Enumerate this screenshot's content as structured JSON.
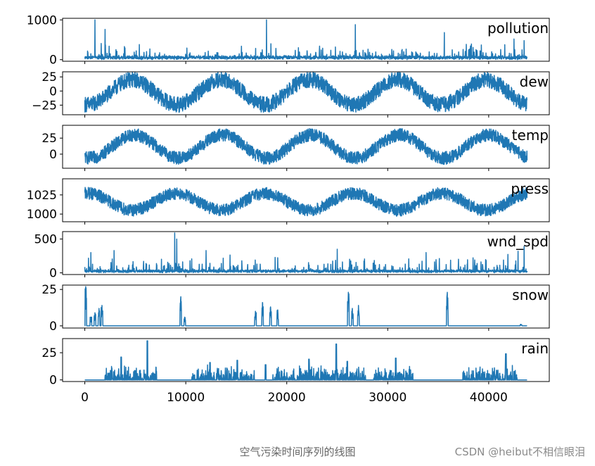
{
  "chart_data": {
    "type": "line",
    "color": "#1f77b4",
    "x_range": [
      0,
      43800
    ],
    "xlim": [
      -2200,
      46000
    ],
    "x_ticks": [
      0,
      10000,
      20000,
      30000,
      40000
    ],
    "x_tick_labels": [
      "0",
      "10000",
      "20000",
      "30000",
      "40000"
    ],
    "panels": [
      {
        "name": "pollution",
        "ylim": [
          -40,
          1040
        ],
        "ticks": [
          0,
          1000
        ],
        "tick_labels": [
          "0",
          "1000"
        ],
        "kind": "spiky",
        "base": 60,
        "spread": 180,
        "peaks": [
          [
            1000,
            1000
          ],
          [
            2000,
            760
          ],
          [
            18000,
            1000
          ],
          [
            26800,
            880
          ],
          [
            35600,
            680
          ],
          [
            42500,
            520
          ],
          [
            43500,
            480
          ]
        ]
      },
      {
        "name": "dew",
        "ylim": [
          -42,
          34
        ],
        "ticks": [
          -25,
          0,
          25
        ],
        "tick_labels": [
          "−25",
          "0",
          "25"
        ],
        "kind": "seasonal",
        "mean": -2,
        "amp": 22,
        "noise": 14,
        "phase_peak": 4700
      },
      {
        "name": "temp",
        "ylim": [
          -22,
          45
        ],
        "ticks": [
          0,
          25
        ],
        "tick_labels": [
          "0",
          "25"
        ],
        "kind": "seasonal",
        "mean": 12,
        "amp": 18,
        "noise": 10,
        "phase_peak": 4900
      },
      {
        "name": "press",
        "ylim": [
          990,
          1046
        ],
        "ticks": [
          1000,
          1025
        ],
        "tick_labels": [
          "1000",
          "1025"
        ],
        "kind": "seasonal",
        "mean": 1016,
        "amp": -11,
        "noise": 8,
        "phase_peak": 4700
      },
      {
        "name": "wnd_spd",
        "ylim": [
          -25,
          610
        ],
        "ticks": [
          0,
          500
        ],
        "tick_labels": [
          "0",
          "500"
        ],
        "kind": "spiky",
        "base": 20,
        "spread": 120,
        "peaks": [
          [
            600,
            300
          ],
          [
            2900,
            330
          ],
          [
            8900,
            590
          ],
          [
            9100,
            500
          ],
          [
            12000,
            330
          ],
          [
            25000,
            350
          ],
          [
            33800,
            300
          ],
          [
            42900,
            320
          ],
          [
            43500,
            390
          ]
        ]
      },
      {
        "name": "snow",
        "ylim": [
          -1.5,
          28
        ],
        "ticks": [
          0,
          25
        ],
        "tick_labels": [
          "0",
          "25"
        ],
        "kind": "events",
        "events": [
          [
            100,
            27
          ],
          [
            600,
            6
          ],
          [
            1000,
            9
          ],
          [
            1400,
            12
          ],
          [
            1700,
            14
          ],
          [
            9500,
            20
          ],
          [
            9900,
            6
          ],
          [
            16900,
            10
          ],
          [
            17600,
            16
          ],
          [
            18400,
            13
          ],
          [
            19100,
            11
          ],
          [
            26100,
            23
          ],
          [
            26500,
            12
          ],
          [
            27100,
            14
          ],
          [
            35900,
            23
          ],
          [
            43200,
            1
          ]
        ]
      },
      {
        "name": "rain",
        "ylim": [
          -1.5,
          38
        ],
        "ticks": [
          0,
          25
        ],
        "tick_labels": [
          "0",
          "25"
        ],
        "kind": "rainy",
        "events": [
          [
            6200,
            36
          ],
          [
            24900,
            33
          ],
          [
            41700,
            24
          ],
          [
            3600,
            21
          ],
          [
            22200,
            19
          ],
          [
            15100,
            18
          ],
          [
            30800,
            20
          ],
          [
            26000,
            17
          ],
          [
            17900,
            14
          ],
          [
            12400,
            16
          ]
        ],
        "seasons": [
          [
            2000,
            7200
          ],
          [
            10600,
            16800
          ],
          [
            18600,
            20800
          ],
          [
            21000,
            27800
          ],
          [
            28600,
            32500
          ],
          [
            37400,
            42800
          ]
        ]
      }
    ]
  },
  "caption": "空气污染时间序列的线图",
  "watermark": "CSDN @heibut不相信眼泪"
}
